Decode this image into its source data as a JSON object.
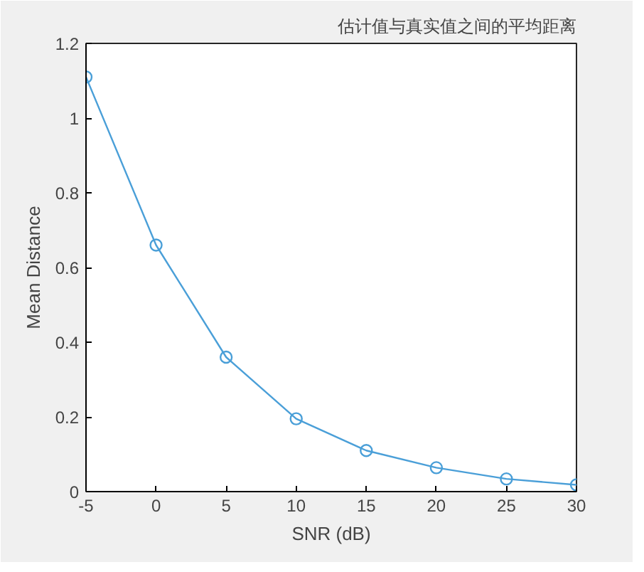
{
  "chart_data": {
    "type": "line",
    "title": "估计值与真实值之间的平均距离",
    "xlabel": "SNR (dB)",
    "ylabel": "Mean Distance",
    "x": [
      -5,
      0,
      5,
      10,
      15,
      20,
      25,
      30
    ],
    "series": [
      {
        "color": "#4a9fd8",
        "values": [
          1.11,
          0.66,
          0.36,
          0.195,
          0.11,
          0.064,
          0.034,
          0.018
        ]
      }
    ],
    "xlim": [
      -5,
      30
    ],
    "ylim": [
      0,
      1.2
    ],
    "xticks": [
      -5,
      0,
      5,
      10,
      15,
      20,
      25,
      30
    ],
    "yticks": [
      0,
      0.2,
      0.4,
      0.6,
      0.8,
      1,
      1.2
    ],
    "marker": "circle",
    "line_style": "solid"
  }
}
